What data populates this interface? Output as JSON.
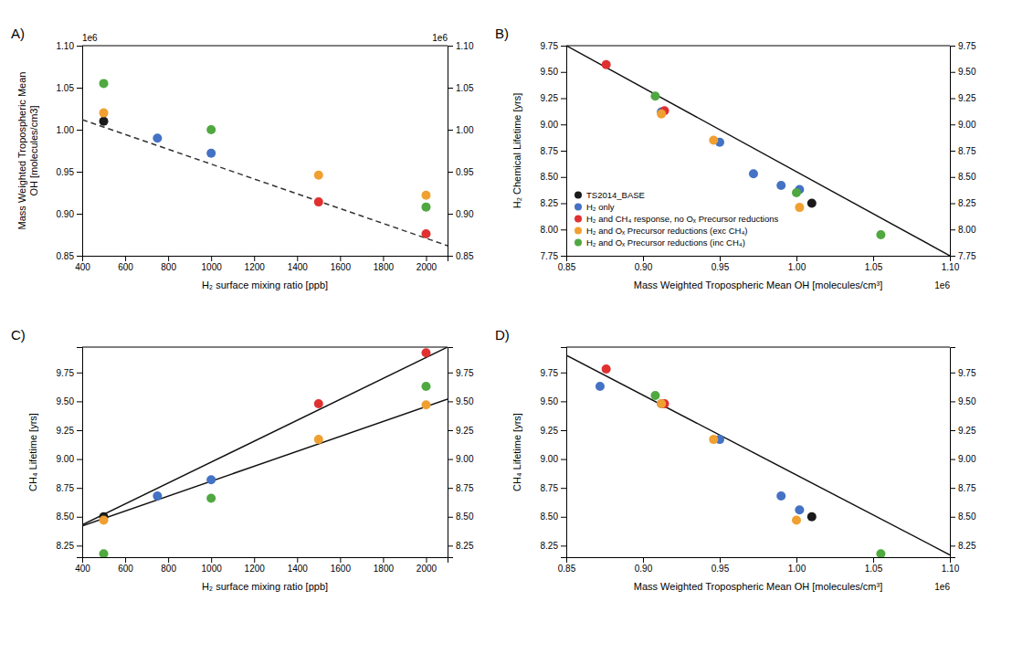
{
  "chart_data": [
    {
      "type": "scatter",
      "title": "A)",
      "xlabel": "H₂ surface mixing ratio [ppb]",
      "ylabel": "Mass Weighted Tropospheric Mean\nOH [molecules/cm3]",
      "xlim": [
        400,
        2100
      ],
      "xticks": [
        400,
        600,
        800,
        1000,
        1200,
        1400,
        1600,
        1800,
        2000
      ],
      "ylim": [
        0.85,
        1.1
      ],
      "yticks": [
        0.85,
        {
          "value": 0.9,
          "label": "0.90"
        },
        0.95,
        {
          "value": 1.0,
          "label": "1.00"
        },
        1.05,
        {
          "value": 1.1,
          "label": "1.10"
        }
      ],
      "y2lim": [
        0.85,
        1.1
      ],
      "y2ticks": [
        0.85,
        {
          "value": 0.9,
          "label": "0.90"
        },
        0.95,
        {
          "value": 1.0,
          "label": "1.00"
        },
        1.05,
        {
          "value": 1.1,
          "label": "1.10"
        }
      ],
      "annotations": [
        {
          "text": "1e6",
          "loc": "upper left"
        },
        {
          "text": "1e6",
          "loc": "upper right"
        }
      ],
      "series": [
        {
          "color": "#1a1a1a",
          "marker": "circle",
          "x": [
            500
          ],
          "values": [
            1.01
          ]
        },
        {
          "color": "#4472c4",
          "marker": "circle",
          "x": [
            750,
            1000
          ],
          "values": [
            0.99,
            0.972
          ]
        },
        {
          "color": "#e03030",
          "marker": "circle",
          "x": [
            1500,
            2000
          ],
          "values": [
            0.914,
            0.876
          ]
        },
        {
          "color": "#f0a030",
          "marker": "circle",
          "x": [
            500,
            1500,
            2000
          ],
          "values": [
            1.02,
            0.946,
            0.922
          ]
        },
        {
          "color": "#50a840",
          "marker": "circle",
          "x": [
            500,
            1000,
            2000
          ],
          "values": [
            1.055,
            1.0,
            0.908
          ]
        },
        {
          "type": "line",
          "color": "#333333",
          "line_style": "dashed",
          "x": [
            400,
            2100
          ],
          "values": [
            1.012,
            0.862
          ]
        }
      ]
    },
    {
      "type": "scatter",
      "title": "B)",
      "xlabel": "Mass Weighted Tropospheric Mean OH [molecules/cm³]",
      "ylabel": "H₂ Chemical Lifetime [yrs]",
      "xlim": [
        0.85,
        1.1
      ],
      "xticks": [
        0.85,
        {
          "value": 0.9,
          "label": "0.90"
        },
        0.95,
        {
          "value": 1.0,
          "label": "1.00"
        },
        1.05,
        {
          "value": 1.1,
          "label": "1.10"
        }
      ],
      "ylim": [
        7.75,
        9.75
      ],
      "yticks": [
        7.75,
        {
          "value": 8.0,
          "label": "8.00"
        },
        8.25,
        {
          "value": 8.5,
          "label": "8.50"
        },
        8.75,
        {
          "value": 9.0,
          "label": "9.00"
        },
        9.25,
        {
          "value": 9.5,
          "label": "9.50"
        },
        9.75
      ],
      "y2lim": [
        7.75,
        9.75
      ],
      "y2ticks": [
        7.75,
        {
          "value": 8.0,
          "label": "8.00"
        },
        8.25,
        {
          "value": 8.5,
          "label": "8.50"
        },
        8.75,
        {
          "value": 9.0,
          "label": "9.00"
        },
        9.25,
        {
          "value": 9.5,
          "label": "9.50"
        },
        9.75
      ],
      "annotations": [
        {
          "text": "1e6",
          "loc": "lower right"
        }
      ],
      "legend": "lower left",
      "series": [
        {
          "name": "TS2014_BASE",
          "color": "#1a1a1a",
          "marker": "circle",
          "x": [
            1.01
          ],
          "values": [
            8.25
          ]
        },
        {
          "name": "H₂ only",
          "color": "#4472c4",
          "marker": "circle",
          "x": [
            0.912,
            0.95,
            0.972,
            0.99,
            1.002
          ],
          "values": [
            9.12,
            8.83,
            8.53,
            8.42,
            8.38
          ]
        },
        {
          "name": "H₂ and CH₄ response, no Oₓ Precursor reductions",
          "color": "#e03030",
          "marker": "circle",
          "x": [
            0.876,
            0.914
          ],
          "values": [
            9.57,
            9.13
          ]
        },
        {
          "name": "H₂ and Oₓ Precursor reductions (exc CH₄)",
          "color": "#f0a030",
          "marker": "circle",
          "x": [
            0.912,
            0.946,
            1.002
          ],
          "values": [
            9.1,
            8.85,
            8.21
          ]
        },
        {
          "name": "H₂ and Oₓ Precursor reductions (inc CH₄)",
          "color": "#50a840",
          "marker": "circle",
          "x": [
            0.908,
            1.0,
            1.055
          ],
          "values": [
            9.27,
            8.35,
            7.95
          ]
        },
        {
          "type": "line",
          "color": "#111111",
          "line_style": "solid",
          "x": [
            0.85,
            1.1
          ],
          "values": [
            9.75,
            7.75
          ]
        }
      ]
    },
    {
      "type": "scatter",
      "title": "C)",
      "xlabel": "H₂ surface mixing ratio [ppb]",
      "ylabel": "CH₄ Lifetime [yrs]",
      "xlim": [
        400,
        2100
      ],
      "xticks": [
        400,
        600,
        800,
        1000,
        1200,
        1400,
        1600,
        1800,
        2000
      ],
      "ylim": [
        8.15,
        9.97
      ],
      "yticks": [
        8.25,
        {
          "value": 8.5,
          "label": "8.50"
        },
        8.75,
        {
          "value": 9.0,
          "label": "9.00"
        },
        9.25,
        {
          "value": 9.5,
          "label": "9.50"
        },
        9.75
      ],
      "y2lim": [
        8.15,
        9.97
      ],
      "y2ticks": [
        8.25,
        {
          "value": 8.5,
          "label": "8.50"
        },
        8.75,
        {
          "value": 9.0,
          "label": "9.00"
        },
        9.25,
        {
          "value": 9.5,
          "label": "9.50"
        },
        9.75
      ],
      "series": [
        {
          "color": "#1a1a1a",
          "marker": "circle",
          "x": [
            500
          ],
          "values": [
            8.5
          ]
        },
        {
          "color": "#4472c4",
          "marker": "circle",
          "x": [
            750,
            1000
          ],
          "values": [
            8.68,
            8.82
          ]
        },
        {
          "color": "#e03030",
          "marker": "circle",
          "x": [
            1500,
            2000
          ],
          "values": [
            9.48,
            9.92
          ]
        },
        {
          "color": "#f0a030",
          "marker": "circle",
          "x": [
            500,
            1500,
            2000
          ],
          "values": [
            8.47,
            9.17,
            9.47
          ]
        },
        {
          "color": "#50a840",
          "marker": "circle",
          "x": [
            500,
            1000,
            2000
          ],
          "values": [
            8.18,
            8.66,
            9.63
          ]
        },
        {
          "type": "line",
          "color": "#111111",
          "line_style": "solid",
          "x": [
            400,
            2100
          ],
          "values": [
            8.42,
            9.52
          ]
        },
        {
          "type": "line",
          "color": "#111111",
          "line_style": "solid",
          "x": [
            400,
            2100
          ],
          "values": [
            8.43,
            9.97
          ]
        }
      ]
    },
    {
      "type": "scatter",
      "title": "D)",
      "xlabel": "Mass Weighted Tropospheric Mean OH [molecules/cm³]",
      "ylabel": "CH₄ Lifetime [yrs]",
      "xlim": [
        0.85,
        1.1
      ],
      "xticks": [
        0.85,
        {
          "value": 0.9,
          "label": "0.90"
        },
        0.95,
        {
          "value": 1.0,
          "label": "1.00"
        },
        1.05,
        {
          "value": 1.1,
          "label": "1.10"
        }
      ],
      "ylim": [
        8.15,
        9.97
      ],
      "yticks": [
        8.25,
        {
          "value": 8.5,
          "label": "8.50"
        },
        8.75,
        {
          "value": 9.0,
          "label": "9.00"
        },
        9.25,
        {
          "value": 9.5,
          "label": "9.50"
        },
        9.75
      ],
      "y2lim": [
        8.15,
        9.97
      ],
      "y2ticks": [
        8.25,
        {
          "value": 8.5,
          "label": "8.50"
        },
        8.75,
        {
          "value": 9.0,
          "label": "9.00"
        },
        9.25,
        {
          "value": 9.5,
          "label": "9.50"
        },
        9.75
      ],
      "annotations": [
        {
          "text": "1e6",
          "loc": "lower right"
        }
      ],
      "series": [
        {
          "color": "#1a1a1a",
          "marker": "circle",
          "x": [
            1.01
          ],
          "values": [
            8.5
          ]
        },
        {
          "color": "#4472c4",
          "marker": "circle",
          "x": [
            0.872,
            0.912,
            0.95,
            0.99,
            1.002
          ],
          "values": [
            9.63,
            9.48,
            9.17,
            8.68,
            8.56
          ]
        },
        {
          "color": "#e03030",
          "marker": "circle",
          "x": [
            0.876,
            0.914
          ],
          "values": [
            9.78,
            9.48
          ]
        },
        {
          "color": "#f0a030",
          "marker": "circle",
          "x": [
            0.912,
            0.946,
            1.0
          ],
          "values": [
            9.48,
            9.17,
            8.47
          ]
        },
        {
          "color": "#50a840",
          "marker": "circle",
          "x": [
            0.908,
            1.055
          ],
          "values": [
            9.55,
            8.18
          ]
        },
        {
          "type": "line",
          "color": "#111111",
          "line_style": "solid",
          "x": [
            0.85,
            1.1
          ],
          "values": [
            9.9,
            8.17
          ]
        }
      ]
    }
  ]
}
